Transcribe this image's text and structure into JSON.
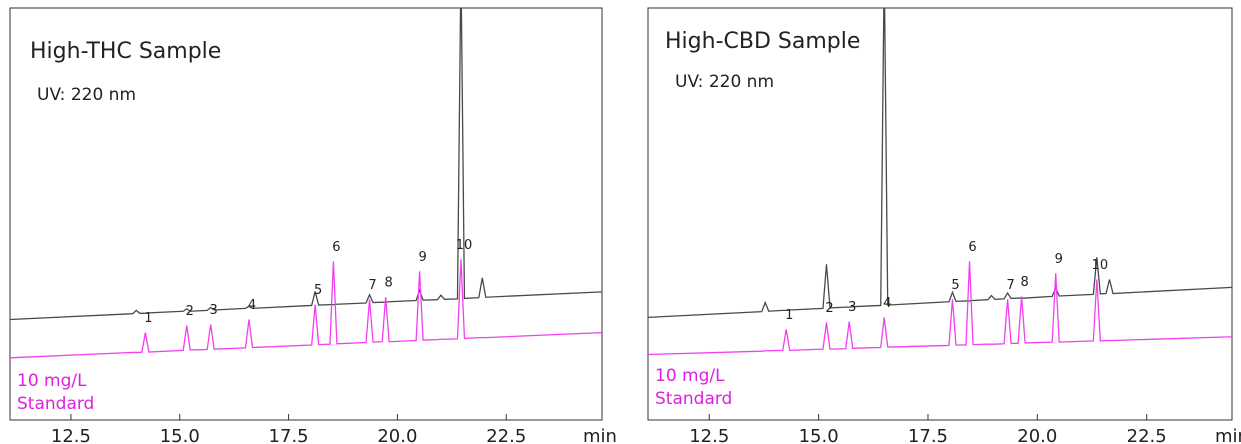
{
  "chart_data": [
    {
      "type": "line",
      "title": "High-THC Sample",
      "subtitle": "UV: 220 nm",
      "annotation": [
        "10 mg/L",
        "Standard"
      ],
      "x_label": "min",
      "xlim": [
        11.1,
        24.7
      ],
      "ylim": [
        0,
        100
      ],
      "xticks": [
        12.5,
        {
          "value": 15,
          "label": "15.0"
        },
        17.5,
        {
          "value": 20,
          "label": "20.0"
        },
        22.5
      ],
      "x": [
        11.1,
        13.92,
        14.0,
        14.08,
        14.13,
        14.21,
        14.29,
        15.08,
        15.16,
        15.24,
        15.63,
        15.71,
        15.79,
        16.51,
        16.59,
        16.67,
        18.03,
        18.11,
        18.19,
        18.45,
        18.53,
        18.61,
        19.28,
        19.36,
        19.44,
        19.65,
        19.73,
        19.81,
        20.43,
        20.51,
        20.59,
        20.92,
        21.0,
        21.08,
        21.38,
        21.46,
        21.54,
        21.87,
        21.95,
        22.03,
        24.7
      ],
      "series": [
        {
          "color": "#4a4a4a",
          "values": [
            24.4,
            25.8,
            26.6,
            25.9,
            25.9,
            25.9,
            26.0,
            26.4,
            27.0,
            26.4,
            26.6,
            27.3,
            26.7,
            27.1,
            27.6,
            27.1,
            27.8,
            31.2,
            27.9,
            28.0,
            28.0,
            28.1,
            28.4,
            30.4,
            28.5,
            28.6,
            28.6,
            28.7,
            29.0,
            31.5,
            29.1,
            29.2,
            30.3,
            29.3,
            29.4,
            110,
            29.5,
            29.7,
            34.5,
            29.8,
            31.1
          ]
        },
        {
          "color": "#f040f0",
          "values": [
            15.1,
            16.4,
            16.4,
            16.4,
            16.5,
            21.2,
            16.5,
            16.9,
            22.9,
            17.0,
            17.1,
            23.2,
            17.2,
            17.5,
            24.4,
            17.6,
            18.2,
            28.0,
            18.3,
            18.4,
            38.5,
            18.5,
            18.8,
            29.3,
            18.9,
            19.0,
            29.8,
            19.0,
            19.3,
            36.1,
            19.4,
            19.5,
            19.6,
            19.6,
            19.7,
            39.0,
            19.8,
            20.0,
            20.0,
            20.0,
            21.2
          ]
        }
      ],
      "peak_labels": [
        "1",
        "2",
        "3",
        "4",
        "5",
        "6",
        "7",
        "8",
        "9",
        "10"
      ],
      "peak_times": [
        14.21,
        15.16,
        15.71,
        16.59,
        18.11,
        18.53,
        19.36,
        19.73,
        20.51,
        21.46
      ]
    },
    {
      "type": "line",
      "title": "High-CBD Sample",
      "subtitle": "UV: 220 nm",
      "annotation": [
        "10 mg/L",
        "Standard"
      ],
      "x_label": "min",
      "xlim": [
        11.1,
        24.45
      ],
      "ylim": [
        0,
        100
      ],
      "xticks": [
        12.5,
        {
          "value": 15,
          "label": "15.0"
        },
        17.5,
        {
          "value": 20,
          "label": "20.0"
        },
        22.5
      ],
      "x": [
        11.1,
        13.7,
        13.78,
        13.86,
        14.18,
        14.26,
        14.34,
        15.1,
        15.18,
        15.26,
        15.62,
        15.7,
        15.78,
        16.42,
        16.5,
        16.58,
        17.98,
        18.06,
        18.14,
        18.37,
        18.45,
        18.53,
        18.87,
        18.95,
        19.03,
        19.24,
        19.32,
        19.4,
        19.56,
        19.64,
        19.72,
        20.34,
        20.42,
        20.5,
        21.28,
        21.36,
        21.44,
        21.57,
        21.65,
        21.73,
        24.45
      ],
      "series": [
        {
          "color": "#4a4a4a",
          "values": [
            24.9,
            26.3,
            28.5,
            26.4,
            26.6,
            26.6,
            26.7,
            27.1,
            37.8,
            27.2,
            27.4,
            27.4,
            27.5,
            27.8,
            110,
            27.9,
            28.7,
            31.0,
            28.8,
            28.9,
            28.9,
            29.0,
            29.2,
            30.2,
            29.3,
            29.4,
            30.8,
            29.5,
            29.6,
            29.6,
            29.6,
            30.0,
            32.0,
            30.1,
            30.5,
            39.5,
            30.6,
            30.7,
            34.1,
            30.7,
            32.2
          ]
        },
        {
          "color": "#f040f0",
          "values": [
            15.9,
            16.7,
            16.8,
            16.8,
            16.9,
            22.0,
            16.9,
            17.2,
            23.7,
            17.2,
            17.3,
            23.9,
            17.4,
            17.6,
            24.9,
            17.7,
            18.1,
            29.3,
            18.2,
            18.2,
            38.5,
            18.3,
            18.4,
            18.4,
            18.4,
            18.5,
            29.3,
            18.6,
            18.6,
            30.0,
            18.7,
            18.9,
            35.6,
            18.9,
            19.2,
            34.1,
            19.2,
            19.3,
            19.3,
            19.3,
            20.2
          ]
        }
      ],
      "peak_labels": [
        "1",
        "2",
        "3",
        "4",
        "5",
        "6",
        "7",
        "8",
        "9",
        "10"
      ],
      "peak_times": [
        14.26,
        15.18,
        15.7,
        16.5,
        18.06,
        18.45,
        19.32,
        19.64,
        20.42,
        21.36
      ]
    }
  ]
}
